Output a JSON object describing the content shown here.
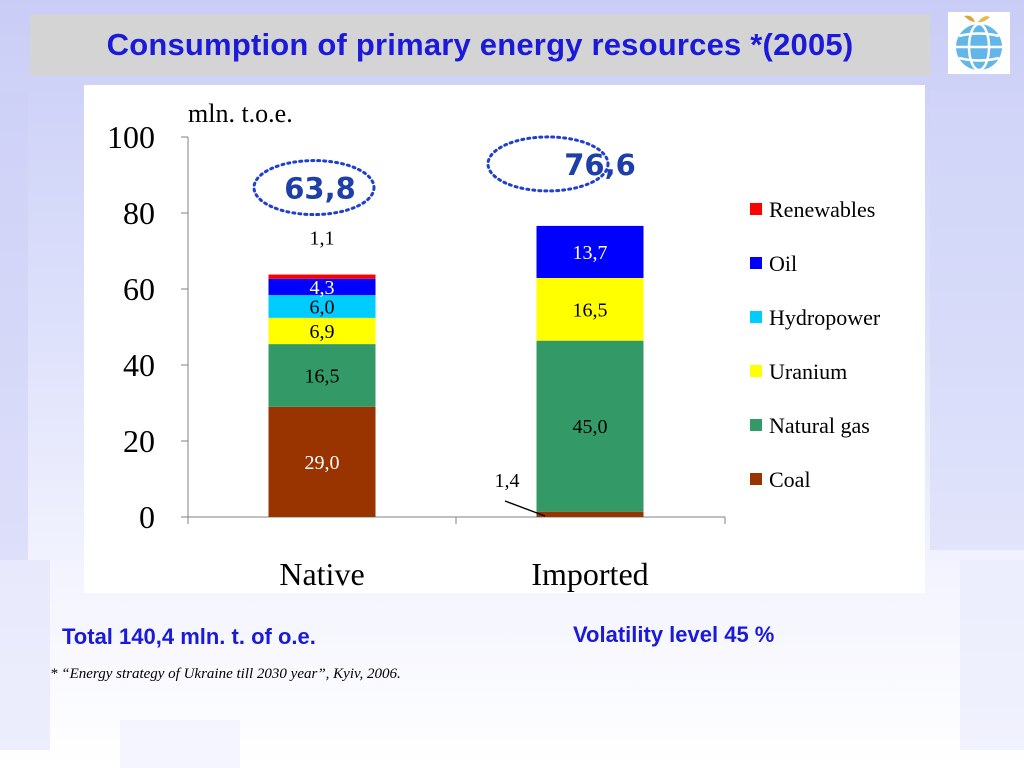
{
  "title": "Consumption of  primary energy resources *(2005)",
  "logo_icon": "globe-icon",
  "colors": {
    "title_text": "#1a1ad8",
    "title_bg": "#d4d4d4",
    "total_highlight": "#1f3fa8",
    "dotted_ellipse": "#1f3fd0"
  },
  "chart_data": {
    "type": "bar",
    "stacked": true,
    "ylabel": "mln. t.o.e.",
    "ylim": [
      0,
      100
    ],
    "yticks": [
      "0",
      "20",
      "40",
      "60",
      "80",
      "100"
    ],
    "categories": [
      "Native",
      "Imported"
    ],
    "series": [
      {
        "name": "Coal",
        "color": "#993300",
        "values": [
          29.0,
          1.4
        ],
        "labels": [
          "29,0",
          "1,4"
        ]
      },
      {
        "name": "Natural gas",
        "color": "#339966",
        "values": [
          16.5,
          45.0
        ],
        "labels": [
          "16,5",
          "45,0"
        ]
      },
      {
        "name": "Uranium",
        "color": "#ffff00",
        "values": [
          6.9,
          16.5
        ],
        "labels": [
          "6,9",
          "16,5"
        ]
      },
      {
        "name": "Hydropower",
        "color": "#00ccff",
        "values": [
          6.0,
          0
        ],
        "labels": [
          "6,0",
          ""
        ]
      },
      {
        "name": "Oil",
        "color": "#0000ff",
        "values": [
          4.3,
          13.7
        ],
        "labels": [
          "4,3",
          "13,7"
        ]
      },
      {
        "name": "Renewables",
        "color": "#ff0000",
        "values": [
          1.1,
          0
        ],
        "labels": [
          "1,1",
          ""
        ]
      }
    ],
    "totals": [
      "63,8",
      "76,6"
    ],
    "legend_position": "right",
    "grid": false
  },
  "footer": {
    "total": "Total 140,4 mln. t. of o.e.",
    "volatility": "Volatility level 45 %",
    "source": "* “Energy strategy of Ukraine till 2030 year”, Kyiv, 2006."
  }
}
